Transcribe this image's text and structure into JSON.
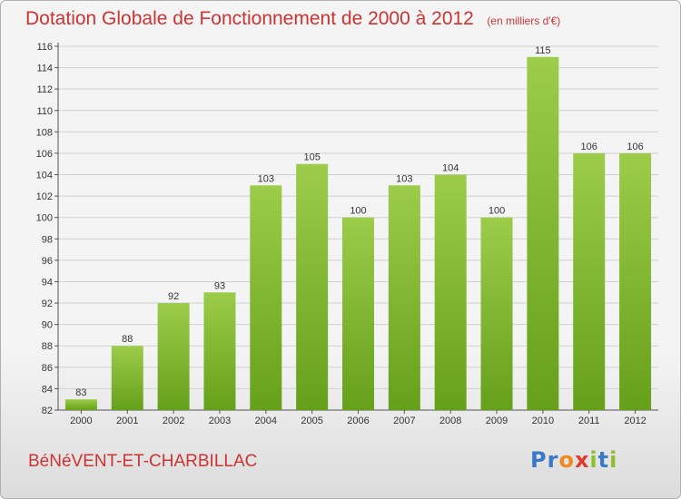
{
  "header": {
    "title": "Dotation Globale de Fonctionnement de 2000 à 2012",
    "unit": "(en milliers d'€)"
  },
  "footer": {
    "commune": "BéNéVENT-ET-CHARBILLAC",
    "logo_letters": [
      "P",
      "r",
      "o",
      "x",
      "i",
      "t",
      "i"
    ]
  },
  "colors": {
    "title": "#cc3333",
    "bar_light": "#9ccc4a",
    "bar_dark": "#66a01a",
    "logo": [
      "#3a78c8",
      "#3a78c8",
      "#f08a1c",
      "#e03a2a",
      "#8cbf2a",
      "#3a78c8",
      "#8cbf2a"
    ]
  },
  "chart_data": {
    "type": "bar",
    "title": "Dotation Globale de Fonctionnement de 2000 à 2012",
    "subtitle": "(en milliers d'€)",
    "categories": [
      "2000",
      "2001",
      "2002",
      "2003",
      "2004",
      "2005",
      "2006",
      "2007",
      "2008",
      "2009",
      "2010",
      "2011",
      "2012"
    ],
    "values": [
      83,
      88,
      92,
      93,
      103,
      105,
      100,
      103,
      104,
      100,
      115,
      106,
      106
    ],
    "ylim": [
      82,
      116
    ],
    "yticks": [
      82,
      84,
      86,
      88,
      90,
      92,
      94,
      96,
      98,
      100,
      102,
      104,
      106,
      108,
      110,
      112,
      114,
      116
    ],
    "grid": "horizontal",
    "data_labels": true
  }
}
